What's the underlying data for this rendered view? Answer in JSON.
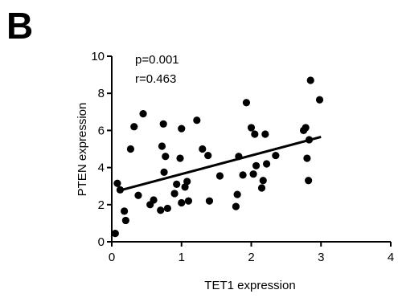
{
  "panel_label": "B",
  "chart_data": {
    "type": "scatter",
    "title": "",
    "xlabel": "TET1 expression",
    "ylabel": "PTEN expression",
    "xlim": [
      0,
      4
    ],
    "ylim": [
      0,
      10
    ],
    "xticks": [
      0,
      1,
      2,
      3,
      4
    ],
    "yticks": [
      0,
      2,
      4,
      6,
      8,
      10
    ],
    "annotations": [
      "p=0.001",
      "r=0.463"
    ],
    "grid": false,
    "points": [
      [
        0.05,
        0.45
      ],
      [
        0.08,
        3.15
      ],
      [
        0.12,
        2.8
      ],
      [
        0.18,
        1.65
      ],
      [
        0.2,
        1.15
      ],
      [
        0.27,
        5.0
      ],
      [
        0.32,
        6.2
      ],
      [
        0.38,
        2.5
      ],
      [
        0.45,
        6.9
      ],
      [
        0.55,
        2.0
      ],
      [
        0.6,
        2.25
      ],
      [
        0.7,
        1.7
      ],
      [
        0.72,
        5.15
      ],
      [
        0.74,
        6.35
      ],
      [
        0.75,
        3.75
      ],
      [
        0.77,
        4.6
      ],
      [
        0.8,
        1.8
      ],
      [
        0.9,
        2.6
      ],
      [
        0.93,
        3.1
      ],
      [
        0.98,
        4.5
      ],
      [
        1.0,
        2.1
      ],
      [
        1.0,
        6.1
      ],
      [
        1.05,
        2.95
      ],
      [
        1.08,
        3.25
      ],
      [
        1.1,
        2.2
      ],
      [
        1.22,
        6.55
      ],
      [
        1.3,
        5.0
      ],
      [
        1.38,
        4.65
      ],
      [
        1.4,
        2.2
      ],
      [
        1.55,
        3.55
      ],
      [
        1.78,
        1.9
      ],
      [
        1.8,
        2.55
      ],
      [
        1.82,
        4.6
      ],
      [
        1.88,
        3.6
      ],
      [
        1.93,
        7.5
      ],
      [
        2.0,
        6.15
      ],
      [
        2.03,
        3.65
      ],
      [
        2.05,
        5.8
      ],
      [
        2.07,
        4.1
      ],
      [
        2.15,
        2.9
      ],
      [
        2.17,
        3.3
      ],
      [
        2.2,
        5.8
      ],
      [
        2.22,
        4.2
      ],
      [
        2.35,
        4.65
      ],
      [
        2.75,
        6.0
      ],
      [
        2.78,
        6.15
      ],
      [
        2.8,
        4.5
      ],
      [
        2.82,
        3.3
      ],
      [
        2.83,
        5.5
      ],
      [
        2.85,
        8.7
      ],
      [
        2.98,
        7.65
      ]
    ],
    "regression_line": {
      "x": [
        0.1,
        3.0
      ],
      "y": [
        2.75,
        5.65
      ]
    }
  }
}
